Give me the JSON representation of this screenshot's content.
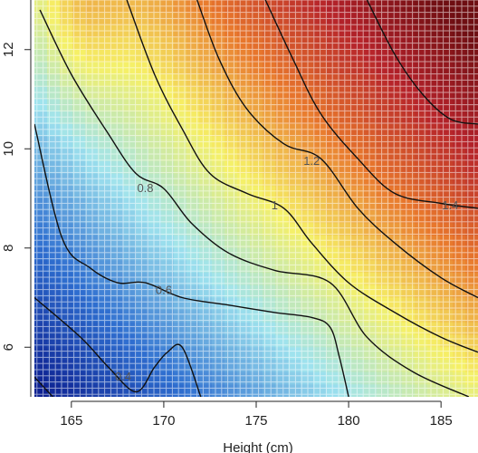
{
  "chart_data": {
    "type": "heatmap",
    "title": "",
    "xlabel": "Height (cm)",
    "ylabel": "",
    "xlim": [
      163,
      187
    ],
    "ylim": [
      5,
      13
    ],
    "x_ticks": [
      165,
      170,
      175,
      180,
      185
    ],
    "y_ticks": [
      6,
      8,
      10,
      12
    ],
    "colorscale": [
      "#0a1a8c",
      "#2f6fd0",
      "#9fe3ee",
      "#f6f066",
      "#e8772c",
      "#b5222a",
      "#6e0e12"
    ],
    "contours": [
      {
        "level": "0.4",
        "points": [
          [
            163,
            7.0
          ],
          [
            165.5,
            6.2
          ],
          [
            167,
            5.6
          ],
          [
            168.5,
            5.1
          ],
          [
            169.5,
            5.6
          ],
          [
            170.2,
            5.9
          ],
          [
            171,
            6.0
          ],
          [
            172,
            5.0
          ]
        ]
      },
      {
        "level": "0.4",
        "points": [
          [
            163,
            5.4
          ],
          [
            164,
            5.0
          ]
        ]
      },
      {
        "level": "0.6",
        "points": [
          [
            163,
            10.5
          ],
          [
            164.5,
            8.2
          ],
          [
            166,
            7.6
          ],
          [
            167.5,
            7.3
          ],
          [
            169,
            7.3
          ],
          [
            171,
            7.0
          ],
          [
            173.5,
            6.85
          ],
          [
            176,
            6.7
          ],
          [
            178,
            6.6
          ],
          [
            179,
            6.4
          ],
          [
            179.5,
            5.8
          ],
          [
            180,
            5.0
          ]
        ]
      },
      {
        "level": "0.8",
        "points": [
          [
            163.3,
            12.8
          ],
          [
            165,
            11.5
          ],
          [
            167,
            10.3
          ],
          [
            168.5,
            9.5
          ],
          [
            170,
            9.2
          ],
          [
            171.5,
            8.5
          ],
          [
            173.5,
            7.9
          ],
          [
            176,
            7.55
          ],
          [
            179,
            7.3
          ],
          [
            181,
            6.2
          ],
          [
            183.5,
            5.5
          ],
          [
            186.5,
            5.0
          ]
        ]
      },
      {
        "level": "1",
        "points": [
          [
            168,
            13.0
          ],
          [
            169.5,
            11.5
          ],
          [
            171,
            10.4
          ],
          [
            172.5,
            9.5
          ],
          [
            174.5,
            9.1
          ],
          [
            176.5,
            8.8
          ],
          [
            178,
            8.1
          ],
          [
            180,
            7.3
          ],
          [
            182.5,
            6.7
          ],
          [
            185,
            6.2
          ],
          [
            187,
            5.9
          ]
        ]
      },
      {
        "level": "1.2",
        "points": [
          [
            171.8,
            13.0
          ],
          [
            173,
            11.8
          ],
          [
            174.5,
            10.8
          ],
          [
            176.5,
            10.1
          ],
          [
            178.5,
            9.8
          ],
          [
            180.5,
            8.8
          ],
          [
            182.5,
            8.1
          ],
          [
            185,
            7.4
          ],
          [
            187,
            7.0
          ]
        ]
      },
      {
        "level": "1.4",
        "points": [
          [
            175.5,
            13.0
          ],
          [
            177,
            11.8
          ],
          [
            178.5,
            10.7
          ],
          [
            180.5,
            9.8
          ],
          [
            182.5,
            9.1
          ],
          [
            185,
            8.9
          ],
          [
            187,
            8.8
          ]
        ]
      },
      {
        "level": "",
        "points": [
          [
            181,
            13.0
          ],
          [
            182.5,
            11.9
          ],
          [
            184,
            11.1
          ],
          [
            185.5,
            10.6
          ],
          [
            187,
            10.5
          ]
        ]
      }
    ],
    "contour_labels": [
      {
        "text": "0.4",
        "x": 167.8,
        "y": 5.4
      },
      {
        "text": "0.6",
        "x": 170.0,
        "y": 7.15
      },
      {
        "text": "0.8",
        "x": 169.0,
        "y": 9.2
      },
      {
        "text": "1",
        "x": 176.0,
        "y": 8.85
      },
      {
        "text": "1.2",
        "x": 178.0,
        "y": 9.75
      },
      {
        "text": "1.4",
        "x": 185.5,
        "y": 8.85
      }
    ]
  }
}
